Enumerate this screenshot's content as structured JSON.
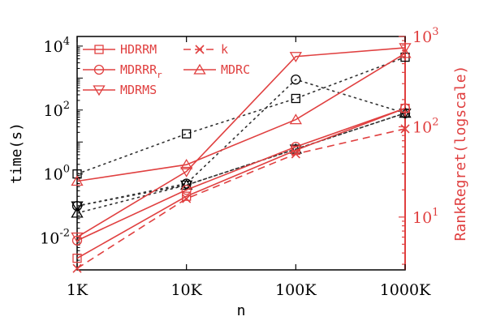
{
  "chart_data": {
    "type": "line",
    "xlabel": "n",
    "ylabel": "time(s)",
    "ylabel_right": "RankRegret(logscale)",
    "x_categories": [
      "1K",
      "10K",
      "100K",
      "1000K"
    ],
    "y_left": {
      "scale": "log10",
      "lim": [
        0.001,
        20000
      ],
      "ticks": [
        {
          "value": 0.01,
          "base": "10",
          "exp": "-2"
        },
        {
          "value": 1,
          "base": "10",
          "exp": "0"
        },
        {
          "value": 100,
          "base": "10",
          "exp": "2"
        },
        {
          "value": 10000,
          "base": "10",
          "exp": "4"
        }
      ]
    },
    "y_right": {
      "scale": "log10",
      "lim": [
        2.6,
        1000
      ],
      "ticks": [
        {
          "value": 10,
          "base": "10",
          "exp": "1"
        },
        {
          "value": 100,
          "base": "10",
          "exp": "2"
        },
        {
          "value": 1000,
          "base": "10",
          "exp": "3"
        }
      ]
    },
    "legend": {
      "placement": "top-left",
      "entries": [
        {
          "label": "HDRRM",
          "marker": "square",
          "dashed": false
        },
        {
          "label": "k",
          "marker": "x",
          "dashed": true
        },
        {
          "label": "MDRRR",
          "sub": "r",
          "marker": "circle",
          "dashed": false
        },
        {
          "label": "MDRC",
          "marker": "triangle-up",
          "dashed": false
        },
        {
          "label": "MDRMS",
          "marker": "triangle-down",
          "dashed": false
        }
      ]
    },
    "time_series": [
      {
        "name": "HDRRM",
        "marker": "square",
        "values": [
          1.0,
          18,
          230,
          4500
        ]
      },
      {
        "name": "MDRRR_r",
        "marker": "circle",
        "values": [
          0.1,
          0.5,
          900,
          80
        ]
      },
      {
        "name": "MDRC",
        "marker": "triangle-up",
        "values": [
          0.06,
          0.45,
          6,
          80
        ]
      },
      {
        "name": "MDRMS",
        "marker": "triangle-down",
        "values": [
          0.1,
          0.45,
          6,
          80
        ]
      }
    ],
    "rankregret_series": [
      {
        "name": "HDRRM",
        "marker": "square",
        "values": [
          3.5,
          17,
          55,
          160
        ]
      },
      {
        "name": "k",
        "marker": "x",
        "dashed": true,
        "values": [
          2.7,
          16,
          50,
          95
        ]
      },
      {
        "name": "MDRRR_r",
        "marker": "circle",
        "values": [
          5.5,
          20,
          60,
          160
        ]
      },
      {
        "name": "MDRC",
        "marker": "triangle-up",
        "values": [
          25,
          38,
          120,
          650
        ]
      },
      {
        "name": "MDRMS",
        "marker": "triangle-down",
        "values": [
          6,
          32,
          600,
          750
        ]
      }
    ],
    "colors": {
      "time": "#000000",
      "rankregret": "#e04040"
    }
  }
}
